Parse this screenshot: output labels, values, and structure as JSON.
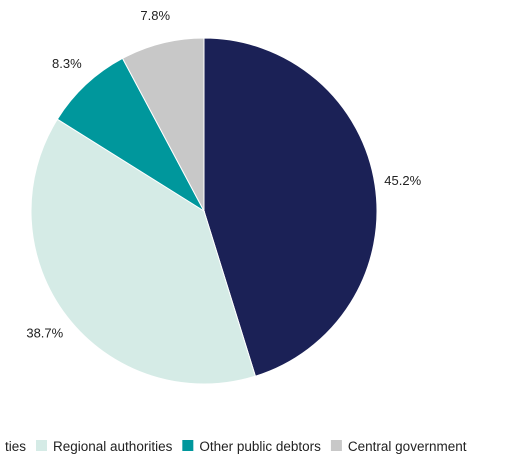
{
  "chart_data": {
    "type": "pie",
    "title": "",
    "start_angle_deg": 0,
    "direction": "clockwise",
    "slices": [
      {
        "label": "Local authorities",
        "legend_text": "ties",
        "value": 45.2,
        "value_label": "45.2%",
        "color": "#1b2156"
      },
      {
        "label": "Regional authorities",
        "legend_text": "Regional authorities",
        "value": 38.7,
        "value_label": "38.7%",
        "color": "#d5ebe6"
      },
      {
        "label": "Other public debtors",
        "legend_text": "Other public debtors",
        "value": 8.3,
        "value_label": "8.3%",
        "color": "#00979c"
      },
      {
        "label": "Central government",
        "legend_text": "Central government",
        "value": 7.8,
        "value_label": "7.8%",
        "color": "#c8c8c8"
      }
    ],
    "legend_position": "bottom"
  }
}
